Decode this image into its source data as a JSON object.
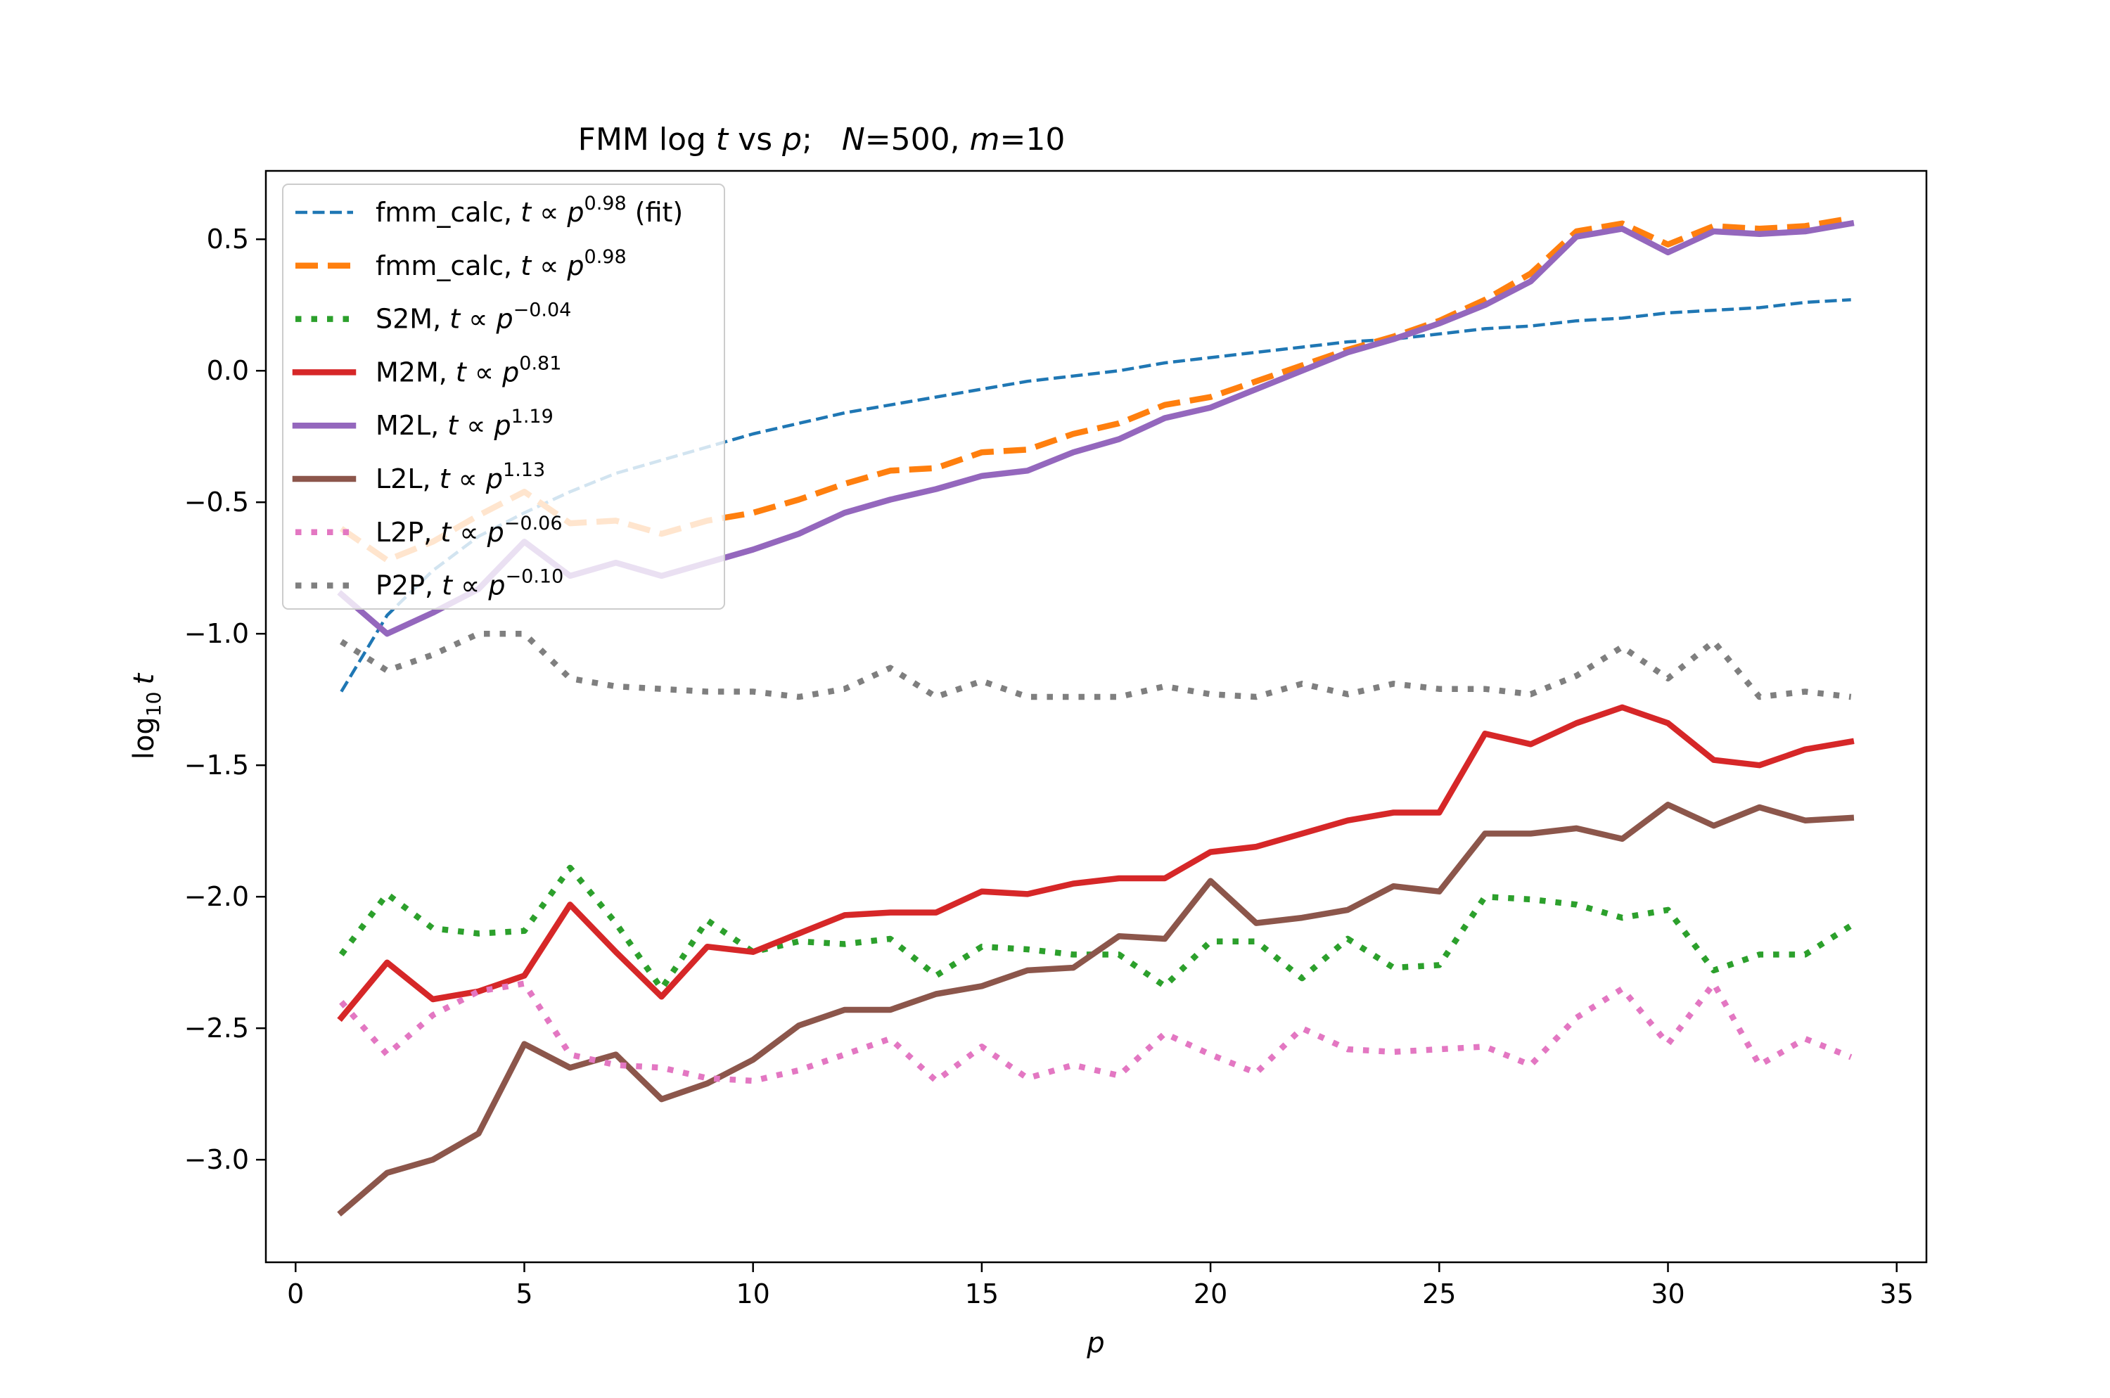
{
  "chart_data": {
    "type": "line",
    "title": {
      "pre": "FMM log ",
      "t": "t",
      "vs": " vs ",
      "p": "p",
      "semi": ";   ",
      "N": "N",
      "Nval": "=500, ",
      "m": "m",
      "mval": "=10"
    },
    "xlabel": "p",
    "ylabel": {
      "log": "log",
      "sub": "10",
      "t": "t"
    },
    "xlim": [
      -0.65,
      35.65
    ],
    "ylim": [
      -3.39,
      0.76
    ],
    "xticks": [
      0,
      5,
      10,
      15,
      20,
      25,
      30,
      35
    ],
    "yticks": [
      -3.0,
      -2.5,
      -2.0,
      -1.5,
      -1.0,
      -0.5,
      0.0,
      0.5
    ],
    "ytick_labels": [
      "−3.0",
      "−2.5",
      "−2.0",
      "−1.5",
      "−1.0",
      "−0.5",
      "0.0",
      "0.5"
    ],
    "grid": false,
    "legend_position": "upper-left",
    "x": [
      1,
      2,
      3,
      4,
      5,
      6,
      7,
      8,
      9,
      10,
      11,
      12,
      13,
      14,
      15,
      16,
      17,
      18,
      19,
      20,
      21,
      22,
      23,
      24,
      25,
      26,
      27,
      28,
      29,
      30,
      31,
      32,
      33,
      34
    ],
    "series": [
      {
        "name": "fmm_calc",
        "exp": "0.98",
        "suffix": " (fit)",
        "color": "#1f77b4",
        "style": "dashed-thin",
        "values": [
          -1.22,
          -0.93,
          -0.76,
          -0.63,
          -0.54,
          -0.46,
          -0.39,
          -0.34,
          -0.29,
          -0.24,
          -0.2,
          -0.16,
          -0.13,
          -0.1,
          -0.07,
          -0.04,
          -0.02,
          0.0,
          0.03,
          0.05,
          0.07,
          0.09,
          0.11,
          0.12,
          0.14,
          0.16,
          0.17,
          0.19,
          0.2,
          0.22,
          0.23,
          0.24,
          0.26,
          0.27
        ]
      },
      {
        "name": "fmm_calc",
        "exp": "0.98",
        "suffix": "",
        "color": "#ff7f0e",
        "style": "dashed",
        "values": [
          -0.6,
          -0.72,
          -0.65,
          -0.55,
          -0.46,
          -0.58,
          -0.57,
          -0.62,
          -0.57,
          -0.54,
          -0.49,
          -0.43,
          -0.38,
          -0.37,
          -0.31,
          -0.3,
          -0.24,
          -0.2,
          -0.13,
          -0.1,
          -0.04,
          0.02,
          0.08,
          0.13,
          0.19,
          0.27,
          0.37,
          0.53,
          0.56,
          0.48,
          0.55,
          0.54,
          0.55,
          0.58
        ]
      },
      {
        "name": "S2M",
        "exp": "−0.04",
        "suffix": "",
        "color": "#2ca02c",
        "style": "dotted",
        "values": [
          -2.22,
          -1.99,
          -2.12,
          -2.14,
          -2.13,
          -1.89,
          -2.1,
          -2.35,
          -2.09,
          -2.21,
          -2.17,
          -2.18,
          -2.16,
          -2.3,
          -2.19,
          -2.2,
          -2.22,
          -2.22,
          -2.34,
          -2.17,
          -2.17,
          -2.31,
          -2.16,
          -2.27,
          -2.26,
          -2.0,
          -2.01,
          -2.03,
          -2.08,
          -2.05,
          -2.28,
          -2.22,
          -2.22,
          -2.11
        ]
      },
      {
        "name": "M2M",
        "exp": "0.81",
        "suffix": "",
        "color": "#d62728",
        "style": "solid",
        "values": [
          -2.46,
          -2.25,
          -2.39,
          -2.36,
          -2.3,
          -2.03,
          -2.21,
          -2.38,
          -2.19,
          -2.21,
          -2.14,
          -2.07,
          -2.06,
          -2.06,
          -1.98,
          -1.99,
          -1.95,
          -1.93,
          -1.93,
          -1.83,
          -1.81,
          -1.76,
          -1.71,
          -1.68,
          -1.68,
          -1.38,
          -1.42,
          -1.34,
          -1.28,
          -1.34,
          -1.48,
          -1.5,
          -1.44,
          -1.41
        ]
      },
      {
        "name": "M2L",
        "exp": "1.19",
        "suffix": "",
        "color": "#9467bd",
        "style": "solid",
        "values": [
          -0.85,
          -1.0,
          -0.92,
          -0.83,
          -0.65,
          -0.78,
          -0.73,
          -0.78,
          -0.73,
          -0.68,
          -0.62,
          -0.54,
          -0.49,
          -0.45,
          -0.4,
          -0.38,
          -0.31,
          -0.26,
          -0.18,
          -0.14,
          -0.07,
          0.0,
          0.07,
          0.12,
          0.18,
          0.25,
          0.34,
          0.51,
          0.54,
          0.45,
          0.53,
          0.52,
          0.53,
          0.56
        ]
      },
      {
        "name": "L2L",
        "exp": "1.13",
        "suffix": "",
        "color": "#8c564b",
        "style": "solid",
        "values": [
          -3.2,
          -3.05,
          -3.0,
          -2.9,
          -2.56,
          -2.65,
          -2.6,
          -2.77,
          -2.71,
          -2.62,
          -2.49,
          -2.43,
          -2.43,
          -2.37,
          -2.34,
          -2.28,
          -2.27,
          -2.15,
          -2.16,
          -1.94,
          -2.1,
          -2.08,
          -2.05,
          -1.96,
          -1.98,
          -1.76,
          -1.76,
          -1.74,
          -1.78,
          -1.65,
          -1.73,
          -1.66,
          -1.71,
          -1.7
        ]
      },
      {
        "name": "L2P",
        "exp": "−0.06",
        "suffix": "",
        "color": "#e377c2",
        "style": "dotted",
        "values": [
          -2.4,
          -2.6,
          -2.45,
          -2.36,
          -2.33,
          -2.6,
          -2.64,
          -2.65,
          -2.69,
          -2.7,
          -2.66,
          -2.6,
          -2.54,
          -2.7,
          -2.57,
          -2.69,
          -2.64,
          -2.68,
          -2.52,
          -2.6,
          -2.67,
          -2.5,
          -2.58,
          -2.59,
          -2.58,
          -2.57,
          -2.64,
          -2.46,
          -2.35,
          -2.56,
          -2.33,
          -2.64,
          -2.54,
          -2.61
        ]
      },
      {
        "name": "P2P",
        "exp": "−0.10",
        "suffix": "",
        "color": "#7f7f7f",
        "style": "dotted",
        "values": [
          -1.03,
          -1.14,
          -1.08,
          -1.0,
          -1.0,
          -1.17,
          -1.2,
          -1.21,
          -1.22,
          -1.22,
          -1.24,
          -1.21,
          -1.13,
          -1.24,
          -1.18,
          -1.24,
          -1.24,
          -1.24,
          -1.2,
          -1.23,
          -1.24,
          -1.19,
          -1.23,
          -1.19,
          -1.21,
          -1.21,
          -1.23,
          -1.16,
          -1.05,
          -1.17,
          -1.03,
          -1.24,
          -1.22,
          -1.24
        ]
      }
    ]
  }
}
